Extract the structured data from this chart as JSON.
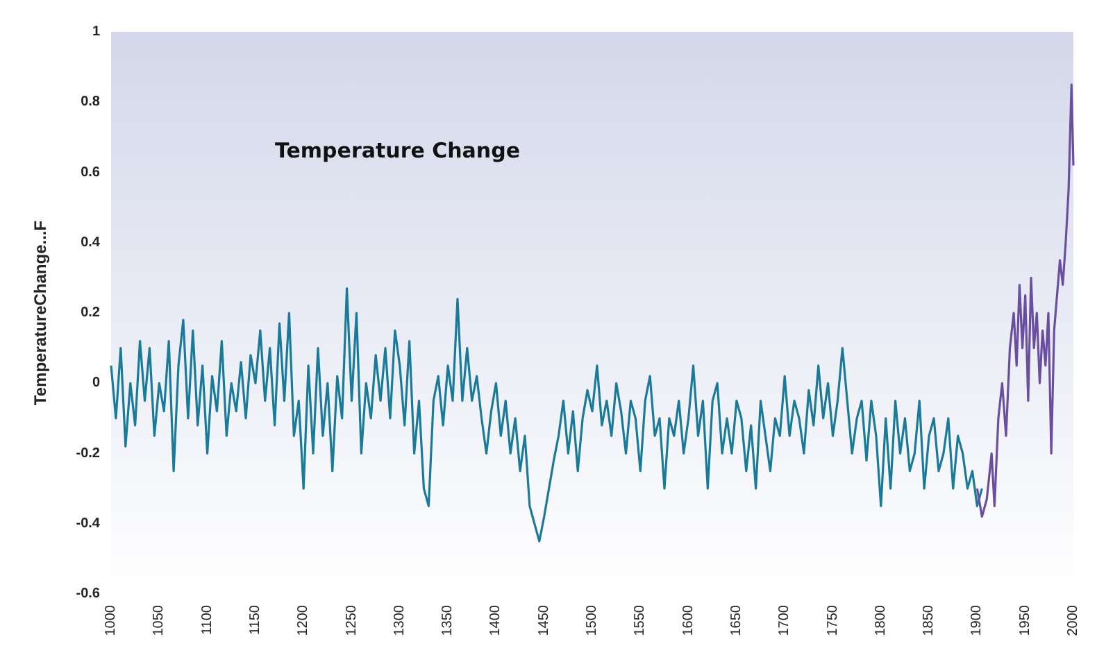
{
  "chart_data": {
    "type": "line",
    "title": "Temperature Change",
    "ylabel": "TemperatureChange...F",
    "xlim": [
      1000,
      2000
    ],
    "xticks": [
      1000,
      1050,
      1100,
      1150,
      1200,
      1250,
      1300,
      1350,
      1400,
      1450,
      1500,
      1550,
      1600,
      1650,
      1700,
      1750,
      1800,
      1850,
      1900,
      1950,
      2000
    ],
    "ylim": [
      -0.6,
      1
    ],
    "yticks": [
      -0.6,
      -0.4,
      -0.2,
      0,
      0.2,
      0.4,
      0.6,
      0.8,
      1
    ],
    "marker": "none",
    "line_style": "solid",
    "series": [
      {
        "color": "#1a7a9a",
        "x": [
          1000,
          1005,
          1010,
          1015,
          1020,
          1025,
          1030,
          1035,
          1040,
          1045,
          1050,
          1055,
          1060,
          1065,
          1070,
          1075,
          1080,
          1085,
          1090,
          1095,
          1100,
          1105,
          1110,
          1115,
          1120,
          1125,
          1130,
          1135,
          1140,
          1145,
          1150,
          1155,
          1160,
          1165,
          1170,
          1175,
          1180,
          1185,
          1190,
          1195,
          1200,
          1205,
          1210,
          1215,
          1220,
          1225,
          1230,
          1235,
          1240,
          1245,
          1250,
          1255,
          1260,
          1265,
          1270,
          1275,
          1280,
          1285,
          1290,
          1295,
          1300,
          1305,
          1310,
          1315,
          1320,
          1325,
          1330,
          1335,
          1340,
          1345,
          1350,
          1355,
          1360,
          1365,
          1370,
          1375,
          1380,
          1385,
          1390,
          1395,
          1400,
          1405,
          1410,
          1415,
          1420,
          1425,
          1430,
          1435,
          1440,
          1445,
          1450,
          1455,
          1460,
          1465,
          1470,
          1475,
          1480,
          1485,
          1490,
          1495,
          1500,
          1505,
          1510,
          1515,
          1520,
          1525,
          1530,
          1535,
          1540,
          1545,
          1550,
          1555,
          1560,
          1565,
          1570,
          1575,
          1580,
          1585,
          1590,
          1595,
          1600,
          1605,
          1610,
          1615,
          1620,
          1625,
          1630,
          1635,
          1640,
          1645,
          1650,
          1655,
          1660,
          1665,
          1670,
          1675,
          1680,
          1685,
          1690,
          1695,
          1700,
          1705,
          1710,
          1715,
          1720,
          1725,
          1730,
          1735,
          1740,
          1745,
          1750,
          1755,
          1760,
          1765,
          1770,
          1775,
          1780,
          1785,
          1790,
          1795,
          1800,
          1805,
          1810,
          1815,
          1820,
          1825,
          1830,
          1835,
          1840,
          1845,
          1850,
          1855,
          1860,
          1865,
          1870,
          1875,
          1880,
          1885,
          1890,
          1895,
          1900,
          1905
        ],
        "values": [
          0.05,
          -0.1,
          0.1,
          -0.18,
          0.0,
          -0.12,
          0.12,
          -0.05,
          0.1,
          -0.15,
          0.0,
          -0.08,
          0.12,
          -0.25,
          0.05,
          0.18,
          -0.1,
          0.15,
          -0.12,
          0.05,
          -0.2,
          0.02,
          -0.08,
          0.12,
          -0.15,
          0.0,
          -0.08,
          0.06,
          -0.1,
          0.08,
          0.0,
          0.15,
          -0.05,
          0.1,
          -0.12,
          0.17,
          -0.05,
          0.2,
          -0.15,
          -0.05,
          -0.3,
          0.05,
          -0.2,
          0.1,
          -0.15,
          0.0,
          -0.25,
          0.02,
          -0.1,
          0.27,
          -0.05,
          0.2,
          -0.2,
          0.0,
          -0.1,
          0.08,
          -0.05,
          0.1,
          -0.1,
          0.15,
          0.05,
          -0.12,
          0.12,
          -0.2,
          -0.05,
          -0.3,
          -0.35,
          -0.05,
          0.02,
          -0.12,
          0.05,
          -0.05,
          0.24,
          -0.05,
          0.1,
          -0.05,
          0.02,
          -0.1,
          -0.2,
          -0.08,
          0.0,
          -0.15,
          -0.05,
          -0.2,
          -0.1,
          -0.25,
          -0.15,
          -0.35,
          -0.4,
          -0.45,
          -0.38,
          -0.3,
          -0.22,
          -0.15,
          -0.05,
          -0.2,
          -0.08,
          -0.25,
          -0.1,
          -0.02,
          -0.08,
          0.05,
          -0.12,
          -0.05,
          -0.15,
          0.0,
          -0.08,
          -0.2,
          -0.05,
          -0.1,
          -0.25,
          -0.05,
          0.02,
          -0.15,
          -0.1,
          -0.3,
          -0.1,
          -0.15,
          -0.05,
          -0.2,
          -0.1,
          0.05,
          -0.15,
          -0.05,
          -0.3,
          -0.05,
          0.0,
          -0.2,
          -0.1,
          -0.2,
          -0.05,
          -0.1,
          -0.25,
          -0.12,
          -0.3,
          -0.05,
          -0.15,
          -0.25,
          -0.1,
          -0.15,
          0.02,
          -0.15,
          -0.05,
          -0.1,
          -0.2,
          -0.02,
          -0.12,
          0.05,
          -0.1,
          0.0,
          -0.15,
          -0.05,
          0.1,
          -0.05,
          -0.2,
          -0.1,
          -0.05,
          -0.22,
          -0.05,
          -0.15,
          -0.35,
          -0.1,
          -0.3,
          -0.05,
          -0.2,
          -0.1,
          -0.25,
          -0.2,
          -0.05,
          -0.3,
          -0.15,
          -0.1,
          -0.25,
          -0.2,
          -0.1,
          -0.3,
          -0.15,
          -0.2,
          -0.3,
          -0.25,
          -0.35,
          -0.3
        ]
      },
      {
        "color": "#6a4fa0",
        "x": [
          1900,
          1905,
          1910,
          1915,
          1918,
          1922,
          1926,
          1930,
          1934,
          1938,
          1941,
          1944,
          1947,
          1950,
          1953,
          1956,
          1959,
          1962,
          1965,
          1968,
          1971,
          1974,
          1977,
          1980,
          1983,
          1986,
          1989,
          1992,
          1995,
          1998,
          2000
        ],
        "values": [
          -0.3,
          -0.38,
          -0.33,
          -0.2,
          -0.35,
          -0.1,
          0.0,
          -0.15,
          0.1,
          0.2,
          0.05,
          0.28,
          0.1,
          0.25,
          -0.05,
          0.3,
          0.1,
          0.2,
          0.0,
          0.15,
          0.05,
          0.2,
          -0.2,
          0.15,
          0.25,
          0.35,
          0.28,
          0.4,
          0.55,
          0.85,
          0.62
        ]
      }
    ]
  }
}
